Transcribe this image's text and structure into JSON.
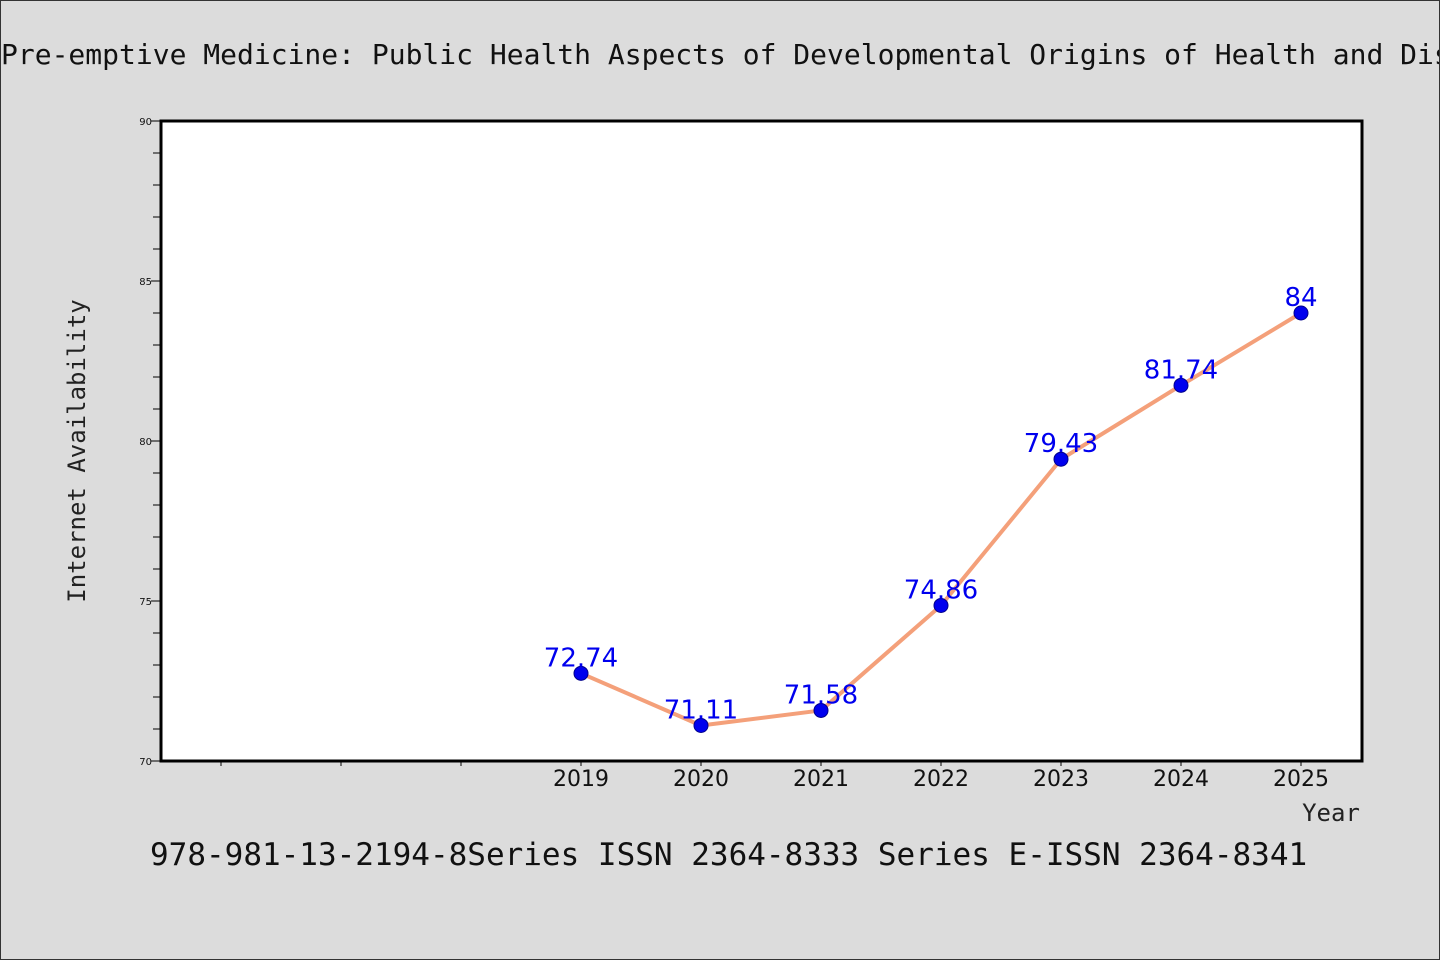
{
  "chart_data": {
    "type": "line",
    "title": "Pre-emptive Medicine: Public Health Aspects of Developmental Origins of Health and Disease",
    "xlabel": "Year",
    "ylabel": "Internet Availability",
    "x": [
      "2019",
      "2020",
      "2021",
      "2022",
      "2023",
      "2024",
      "2025"
    ],
    "y": [
      72.74,
      71.11,
      71.58,
      74.86,
      79.43,
      81.74,
      84
    ],
    "data_labels": [
      "72.74",
      "71.11",
      "71.58",
      "74.86",
      "79.43",
      "81.74",
      "84"
    ],
    "ylim": [
      70,
      90
    ],
    "yticks": [
      "70",
      "75",
      "80",
      "85",
      "90"
    ],
    "grid": false,
    "line_color": "#f4a07a",
    "marker_color": "#0000ee",
    "label_color": "#0000ee"
  },
  "footer": {
    "text": "978-981-13-2194-8Series ISSN 2364-8333 Series E-ISSN 2364-8341"
  },
  "colors": {
    "background": "#dcdcdc",
    "plot_background": "#ffffff"
  }
}
